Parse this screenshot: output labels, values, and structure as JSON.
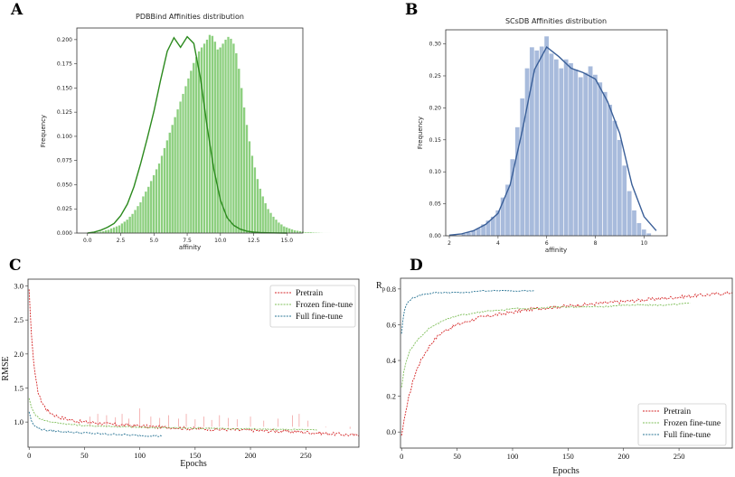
{
  "panels": {
    "A": "A",
    "B": "B",
    "C": "C",
    "D": "D"
  },
  "colors": {
    "green_bar": "#8ccf7e",
    "green_kde": "#2c8a1e",
    "blue_bar": "#a8bbdc",
    "blue_kde": "#3a5f98",
    "pretrain": "#d62728",
    "frozen": "#7fbf5a",
    "full": "#2a7595",
    "pretrain_spike": "#f2a3a3"
  },
  "chart_data": [
    {
      "type": "bar",
      "id": "A",
      "title": "PDBBind Affinities distribution",
      "xlabel": "affinity",
      "ylabel": "Frequency",
      "xlim": [
        -0.8,
        16.2
      ],
      "ylim": [
        0,
        0.212
      ],
      "xticks": [
        0.0,
        2.5,
        5.0,
        7.5,
        10.0,
        12.5,
        15.0
      ],
      "xtick_labels": [
        "0.0",
        "2.5",
        "5.0",
        "7.5",
        "10.0",
        "12.5",
        "15.0"
      ],
      "yticks": [
        0.0,
        0.025,
        0.05,
        0.075,
        0.1,
        0.125,
        0.15,
        0.175,
        0.2
      ],
      "ytick_labels": [
        "0.000",
        "0.025",
        "0.050",
        "0.075",
        "0.100",
        "0.125",
        "0.150",
        "0.175",
        "0.200"
      ],
      "bin_start": 0.3,
      "bin_width": 0.2,
      "values": [
        0.0005,
        0.001,
        0.001,
        0.0015,
        0.002,
        0.003,
        0.0035,
        0.005,
        0.006,
        0.007,
        0.008,
        0.01,
        0.012,
        0.014,
        0.017,
        0.02,
        0.024,
        0.028,
        0.032,
        0.038,
        0.043,
        0.048,
        0.054,
        0.06,
        0.066,
        0.072,
        0.08,
        0.088,
        0.096,
        0.104,
        0.112,
        0.12,
        0.128,
        0.136,
        0.144,
        0.152,
        0.16,
        0.168,
        0.176,
        0.182,
        0.188,
        0.192,
        0.196,
        0.2,
        0.205,
        0.204,
        0.198,
        0.19,
        0.192,
        0.196,
        0.2,
        0.203,
        0.201,
        0.196,
        0.186,
        0.17,
        0.15,
        0.13,
        0.112,
        0.095,
        0.08,
        0.068,
        0.056,
        0.046,
        0.038,
        0.031,
        0.025,
        0.021,
        0.017,
        0.014,
        0.011,
        0.009,
        0.007,
        0.006,
        0.005,
        0.004,
        0.003,
        0.0025,
        0.002,
        0.0015,
        0.001,
        0.001,
        0.001,
        0.0008,
        0.0006,
        0.0005,
        0.0004,
        0.0003,
        0.0003,
        0.0002
      ],
      "kde": {
        "x": [
          0.0,
          0.5,
          1.0,
          1.5,
          2.0,
          2.5,
          3.0,
          3.5,
          4.0,
          4.5,
          5.0,
          5.5,
          6.0,
          6.5,
          7.0,
          7.5,
          8.0,
          8.5,
          9.0,
          9.5,
          10.0,
          10.5,
          11.0,
          11.5,
          12.0,
          12.5,
          13.0,
          13.5,
          14.0,
          14.5,
          15.0
        ],
        "y": [
          0.0,
          0.001,
          0.003,
          0.006,
          0.01,
          0.018,
          0.03,
          0.048,
          0.072,
          0.098,
          0.126,
          0.158,
          0.188,
          0.202,
          0.192,
          0.203,
          0.196,
          0.16,
          0.11,
          0.066,
          0.034,
          0.016,
          0.008,
          0.004,
          0.002,
          0.001,
          0.0005,
          0.0003,
          0.0002,
          0.0001,
          0.0
        ]
      }
    },
    {
      "type": "bar",
      "id": "B",
      "title": "SCsDB Affinities distribution",
      "xlabel": "affinity",
      "ylabel": "Frequency",
      "xlim": [
        1.85,
        10.95
      ],
      "ylim": [
        0,
        0.322
      ],
      "xticks": [
        2,
        4,
        6,
        8,
        10
      ],
      "xtick_labels": [
        "2",
        "4",
        "6",
        "8",
        "10"
      ],
      "yticks": [
        0.0,
        0.05,
        0.1,
        0.15,
        0.2,
        0.25,
        0.3
      ],
      "ytick_labels": [
        "0.00",
        "0.05",
        "0.10",
        "0.15",
        "0.20",
        "0.25",
        "0.30"
      ],
      "bin_start": 2.1,
      "bin_width": 0.2,
      "values": [
        0.002,
        0.0,
        0.003,
        0.005,
        0.008,
        0.012,
        0.018,
        0.024,
        0.03,
        0.04,
        0.06,
        0.08,
        0.12,
        0.17,
        0.215,
        0.262,
        0.295,
        0.29,
        0.296,
        0.312,
        0.285,
        0.276,
        0.262,
        0.276,
        0.27,
        0.26,
        0.248,
        0.255,
        0.265,
        0.252,
        0.24,
        0.225,
        0.205,
        0.18,
        0.15,
        0.11,
        0.07,
        0.04,
        0.02,
        0.01,
        0.004
      ],
      "kde": {
        "x": [
          2.0,
          2.5,
          3.0,
          3.5,
          4.0,
          4.5,
          5.0,
          5.5,
          6.0,
          6.5,
          7.0,
          7.5,
          8.0,
          8.5,
          9.0,
          9.5,
          10.0,
          10.5
        ],
        "y": [
          0.001,
          0.003,
          0.008,
          0.018,
          0.035,
          0.08,
          0.165,
          0.26,
          0.295,
          0.28,
          0.262,
          0.255,
          0.245,
          0.21,
          0.16,
          0.08,
          0.03,
          0.008
        ]
      }
    },
    {
      "type": "line",
      "id": "C",
      "xlabel": "Epochs",
      "ylabel": "RMSE",
      "xlim": [
        -1,
        298
      ],
      "ylim": [
        0.63,
        3.1
      ],
      "xticks": [
        0,
        50,
        100,
        150,
        200,
        250
      ],
      "xtick_labels": [
        "0",
        "50",
        "100",
        "150",
        "200",
        "250"
      ],
      "yticks": [
        1.0,
        1.5,
        2.0,
        2.5,
        3.0
      ],
      "ytick_labels": [
        "1.0",
        "1.5",
        "2.0",
        "2.5",
        "3.0"
      ],
      "legend_location": "top-right",
      "series": [
        {
          "name": "Pretrain",
          "x": [
            0,
            2,
            4,
            6,
            8,
            10,
            12,
            15,
            18,
            22,
            26,
            30,
            35,
            40,
            50,
            60,
            70,
            80,
            90,
            100,
            110,
            120,
            130,
            140,
            150,
            160,
            170,
            180,
            190,
            200,
            210,
            220,
            230,
            240,
            250,
            260,
            270,
            280,
            290,
            298
          ],
          "y": [
            2.95,
            2.3,
            1.9,
            1.62,
            1.45,
            1.35,
            1.28,
            1.2,
            1.15,
            1.11,
            1.08,
            1.06,
            1.04,
            1.02,
            1.0,
            0.99,
            0.97,
            0.96,
            0.95,
            0.94,
            0.93,
            0.92,
            0.92,
            0.91,
            0.9,
            0.9,
            0.89,
            0.89,
            0.88,
            0.88,
            0.87,
            0.87,
            0.86,
            0.86,
            0.85,
            0.84,
            0.83,
            0.82,
            0.81,
            0.8
          ]
        },
        {
          "name": "Frozen fine-tune",
          "x": [
            0,
            2,
            4,
            6,
            8,
            10,
            15,
            20,
            30,
            40,
            50,
            60,
            70,
            80,
            90,
            100,
            120,
            140,
            160,
            180,
            200,
            220,
            240,
            260
          ],
          "y": [
            1.35,
            1.22,
            1.15,
            1.1,
            1.07,
            1.05,
            1.02,
            1.0,
            0.98,
            0.96,
            0.95,
            0.94,
            0.94,
            0.93,
            0.93,
            0.92,
            0.92,
            0.91,
            0.91,
            0.9,
            0.9,
            0.89,
            0.89,
            0.88
          ]
        },
        {
          "name": "Full fine-tune",
          "x": [
            0,
            2,
            4,
            6,
            8,
            10,
            15,
            20,
            30,
            40,
            50,
            60,
            70,
            80,
            90,
            100,
            110,
            120
          ],
          "y": [
            1.15,
            1.02,
            0.96,
            0.93,
            0.91,
            0.9,
            0.88,
            0.87,
            0.86,
            0.85,
            0.84,
            0.83,
            0.82,
            0.82,
            0.81,
            0.8,
            0.8,
            0.79
          ]
        }
      ],
      "spikes": {
        "x": [
          55,
          62,
          70,
          78,
          84,
          90,
          100,
          110,
          118,
          126,
          135,
          142,
          150,
          158,
          165,
          172,
          180,
          188,
          200,
          212,
          225,
          238,
          244,
          252,
          268,
          290
        ],
        "y": [
          1.08,
          1.12,
          1.1,
          1.07,
          1.12,
          1.05,
          1.2,
          1.08,
          1.06,
          1.1,
          1.05,
          1.12,
          1.04,
          1.08,
          1.03,
          1.1,
          1.06,
          1.04,
          1.08,
          1.02,
          1.05,
          1.1,
          1.12,
          1.02,
          0.92,
          0.9
        ]
      }
    },
    {
      "type": "line",
      "id": "D",
      "xlabel": "Epochs",
      "ylabel_main": "R",
      "ylabel_sub": "p",
      "xlim": [
        -1,
        298
      ],
      "ylim": [
        -0.09,
        0.86
      ],
      "xticks": [
        0,
        50,
        100,
        150,
        200,
        250
      ],
      "xtick_labels": [
        "0",
        "50",
        "100",
        "150",
        "200",
        "250"
      ],
      "yticks": [
        0.0,
        0.2,
        0.4,
        0.6,
        0.8
      ],
      "ytick_labels": [
        "0.0",
        "0.2",
        "0.4",
        "0.6",
        "0.8"
      ],
      "legend_location": "bottom-right",
      "series": [
        {
          "name": "Pretrain",
          "x": [
            0,
            2,
            4,
            6,
            8,
            10,
            12,
            15,
            20,
            25,
            30,
            35,
            40,
            50,
            60,
            70,
            80,
            90,
            100,
            120,
            140,
            160,
            180,
            200,
            220,
            240,
            260,
            280,
            298
          ],
          "y": [
            -0.02,
            0.06,
            0.12,
            0.18,
            0.23,
            0.28,
            0.32,
            0.37,
            0.43,
            0.48,
            0.52,
            0.55,
            0.57,
            0.6,
            0.62,
            0.64,
            0.65,
            0.66,
            0.67,
            0.69,
            0.7,
            0.71,
            0.72,
            0.73,
            0.74,
            0.75,
            0.76,
            0.77,
            0.78
          ]
        },
        {
          "name": "Frozen fine-tune",
          "x": [
            0,
            2,
            4,
            6,
            8,
            10,
            15,
            20,
            25,
            30,
            40,
            50,
            60,
            70,
            80,
            90,
            100,
            120,
            140,
            160,
            180,
            200,
            220,
            240,
            260
          ],
          "y": [
            0.25,
            0.34,
            0.39,
            0.43,
            0.46,
            0.48,
            0.52,
            0.55,
            0.58,
            0.6,
            0.63,
            0.65,
            0.66,
            0.67,
            0.68,
            0.68,
            0.69,
            0.69,
            0.7,
            0.7,
            0.7,
            0.71,
            0.71,
            0.71,
            0.72
          ]
        },
        {
          "name": "Full fine-tune",
          "x": [
            0,
            1,
            2,
            3,
            5,
            8,
            10,
            15,
            20,
            30,
            40,
            50,
            60,
            70,
            80,
            90,
            100,
            110,
            120
          ],
          "y": [
            0.55,
            0.62,
            0.66,
            0.69,
            0.72,
            0.74,
            0.75,
            0.76,
            0.77,
            0.78,
            0.78,
            0.78,
            0.78,
            0.79,
            0.79,
            0.79,
            0.79,
            0.79,
            0.79
          ]
        }
      ]
    }
  ]
}
